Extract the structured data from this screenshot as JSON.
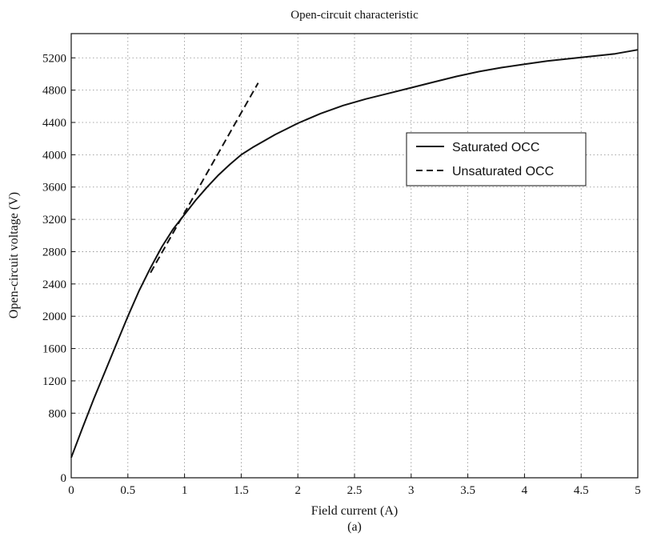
{
  "chart_data": {
    "type": "line",
    "title": "Open-circuit characteristic",
    "xlabel": "Field current (A)",
    "ylabel": "Open-circuit voltage (V)",
    "caption": "(a)",
    "xlim": [
      0,
      5
    ],
    "ylim": [
      0,
      5500
    ],
    "xticks": [
      0,
      0.5,
      1,
      1.5,
      2,
      2.5,
      3,
      3.5,
      4,
      4.5,
      5
    ],
    "xtick_labels": [
      "0",
      "0.5",
      "1",
      "1.5",
      "2",
      "2.5",
      "3",
      "3.5",
      "4",
      "4.5",
      "5"
    ],
    "yticks": [
      0,
      800,
      1200,
      1600,
      2000,
      2400,
      2800,
      3200,
      3600,
      4000,
      4400,
      4800,
      5200
    ],
    "ytick_labels": [
      "0",
      "800",
      "1200",
      "1600",
      "2000",
      "2400",
      "2800",
      "3200",
      "3600",
      "4000",
      "4400",
      "4800",
      "5200"
    ],
    "grid": true,
    "legend_position": "top-right",
    "series": [
      {
        "name": "Saturated OCC",
        "style": "solid",
        "color": "#111111",
        "x": [
          0,
          0.1,
          0.2,
          0.3,
          0.4,
          0.5,
          0.6,
          0.7,
          0.8,
          0.9,
          1.0,
          1.1,
          1.2,
          1.3,
          1.4,
          1.5,
          1.6,
          1.7,
          1.8,
          1.9,
          2.0,
          2.2,
          2.4,
          2.6,
          2.8,
          3.0,
          3.2,
          3.4,
          3.6,
          3.8,
          4.0,
          4.2,
          4.4,
          4.6,
          4.8,
          5.0
        ],
        "y": [
          250,
          620,
          980,
          1320,
          1660,
          2000,
          2320,
          2600,
          2860,
          3080,
          3260,
          3440,
          3600,
          3750,
          3880,
          4000,
          4090,
          4170,
          4250,
          4320,
          4390,
          4510,
          4610,
          4690,
          4760,
          4830,
          4900,
          4970,
          5030,
          5080,
          5120,
          5160,
          5190,
          5220,
          5250,
          5300
        ]
      },
      {
        "name": "Unsaturated OCC",
        "style": "dashed",
        "color": "#111111",
        "x": [
          0.7,
          1.65
        ],
        "y": [
          2540,
          4890
        ]
      }
    ]
  }
}
